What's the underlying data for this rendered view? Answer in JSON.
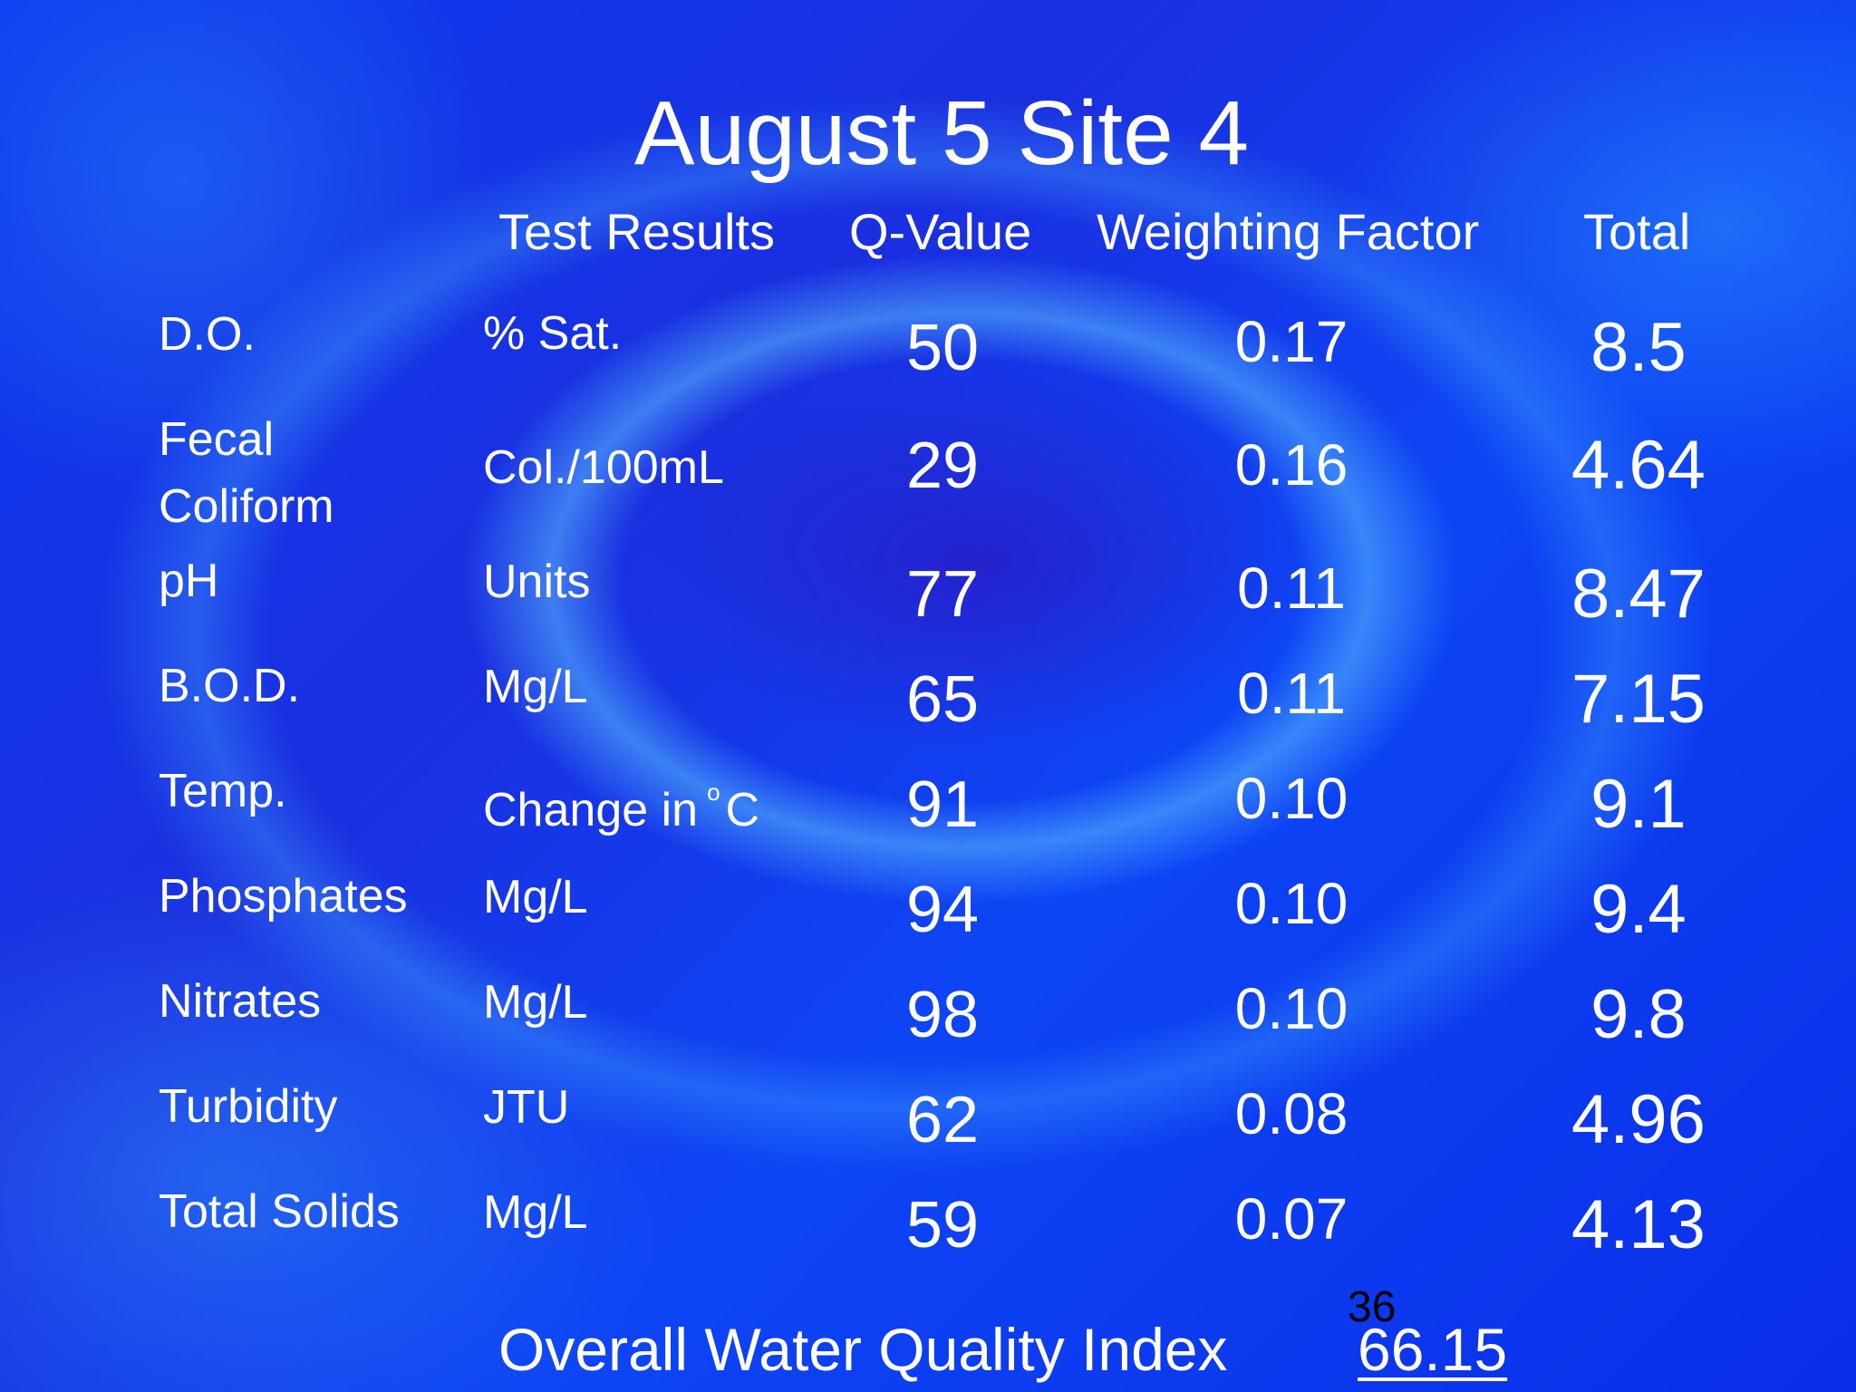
{
  "slide": {
    "title": "August 5 Site 4",
    "background_color": "#0a2ee8"
  },
  "columns": {
    "test_results": "Test Results",
    "q_value": "Q-Value",
    "weighting_factor": "Weighting Factor",
    "total": "Total"
  },
  "rows": [
    {
      "param": "D.O.",
      "unit": "% Sat.",
      "q": "50",
      "weight": "0.17",
      "total": "8.5"
    },
    {
      "param_line1": "Fecal",
      "param_line2": "Coliform",
      "unit": "Col./100mL",
      "q": "29",
      "weight": "0.16",
      "total": "4.64"
    },
    {
      "param": "pH",
      "unit": "Units",
      "q": "77",
      "weight": "0.11",
      "total": "8.47"
    },
    {
      "param": "B.O.D.",
      "unit": "Mg/L",
      "q": "65",
      "weight": "0.11",
      "total": "7.15"
    },
    {
      "param": "Temp.",
      "unit_prefix": "Change in",
      "unit_degree": "o",
      "unit_suffix": "C",
      "q": "91",
      "weight": "0.10",
      "total": "9.1"
    },
    {
      "param": "Phosphates",
      "unit": "Mg/L",
      "q": "94",
      "weight": "0.10",
      "total": "9.4"
    },
    {
      "param": "Nitrates",
      "unit": "Mg/L",
      "q": "98",
      "weight": "0.10",
      "total": "9.8"
    },
    {
      "param": "Turbidity",
      "unit": "JTU",
      "q": "62",
      "weight": "0.08",
      "total": "4.96"
    },
    {
      "param": "Total Solids",
      "unit": "Mg/L",
      "q": "59",
      "weight": "0.07",
      "total": "4.13"
    }
  ],
  "summary": {
    "label": "Overall Water Quality Index",
    "value": "66.15"
  },
  "page_number": "36"
}
